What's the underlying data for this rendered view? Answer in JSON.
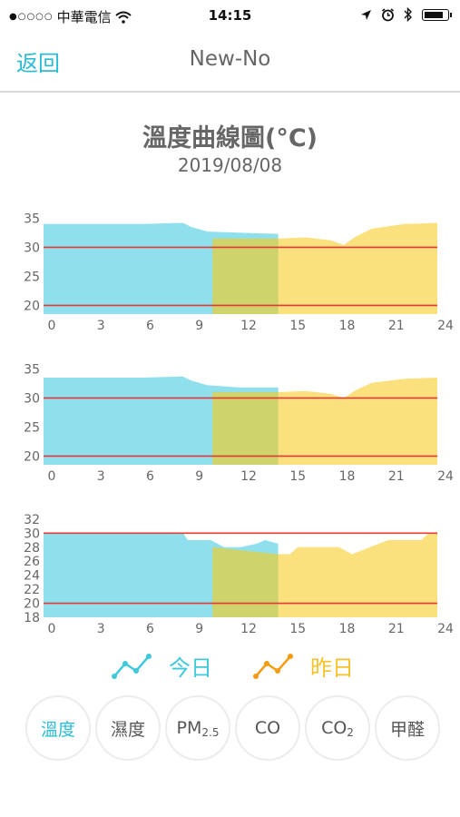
{
  "status_bar": {
    "carrier": "中華電信",
    "time": "14:15",
    "signal_icon": "signal-dots",
    "wifi_icon": "wifi-icon",
    "location_icon": "location-arrow-icon",
    "alarm_icon": "alarm-clock-icon",
    "bluetooth_icon": "bluetooth-icon",
    "battery_icon": "battery-icon"
  },
  "nav": {
    "back_label": "返回",
    "title": "New-No"
  },
  "page": {
    "title": "溫度曲線圖(°C)",
    "date": "2019/08/08"
  },
  "colors": {
    "today": "#8fe0ec",
    "yesterday": "#fbe07e",
    "overlap": "#cfd36b",
    "threshold": "#e53935",
    "accent": "#29bcd4",
    "yesterday_text": "#f6c22b"
  },
  "chart_data": [
    {
      "type": "area",
      "x_ticks": [
        0,
        3,
        6,
        9,
        12,
        15,
        18,
        21,
        24
      ],
      "y_ticks": [
        20,
        25,
        30,
        35
      ],
      "ylim": [
        18.5,
        36
      ],
      "thresholds": [
        20,
        30
      ],
      "series": [
        {
          "x": [
            0,
            6,
            8.5,
            9,
            10,
            12,
            14.3
          ],
          "y": [
            34,
            34,
            34.2,
            33.5,
            32.7,
            32.5,
            32.3
          ]
        },
        {
          "x": [
            10.3,
            14.3,
            16,
            17.5,
            18.3,
            19,
            20,
            22,
            24
          ],
          "y": [
            31.5,
            31.5,
            31.7,
            31.2,
            30.4,
            31.8,
            33.2,
            34,
            34.2
          ]
        }
      ]
    },
    {
      "type": "area",
      "x_ticks": [
        0,
        3,
        6,
        9,
        12,
        15,
        18,
        21,
        24
      ],
      "y_ticks": [
        20,
        25,
        30,
        35
      ],
      "ylim": [
        18.5,
        36
      ],
      "thresholds": [
        20,
        30
      ],
      "series": [
        {
          "x": [
            0,
            6,
            8.5,
            9,
            10,
            12,
            14.3
          ],
          "y": [
            33.5,
            33.5,
            33.7,
            33,
            32.2,
            31.8,
            31.8
          ]
        },
        {
          "x": [
            10.3,
            14.3,
            16,
            17.5,
            18.3,
            19,
            20,
            22,
            24
          ],
          "y": [
            31,
            31,
            31.2,
            30.7,
            30,
            31.3,
            32.6,
            33.3,
            33.5
          ]
        }
      ]
    },
    {
      "type": "area",
      "x_ticks": [
        0,
        3,
        6,
        9,
        12,
        15,
        18,
        21,
        24
      ],
      "y_ticks": [
        18,
        20,
        22,
        24,
        26,
        28,
        30,
        32
      ],
      "ylim": [
        18,
        32.5
      ],
      "thresholds": [
        20,
        30
      ],
      "series": [
        {
          "x": [
            0,
            8.5,
            8.8,
            10.2,
            11,
            12,
            13,
            13.5,
            14.3
          ],
          "y": [
            30,
            30,
            29,
            29,
            28,
            28,
            28.5,
            29,
            28.5
          ]
        },
        {
          "x": [
            10.3,
            14.3,
            15,
            15.5,
            18,
            18.8,
            21,
            23,
            23.5,
            24
          ],
          "y": [
            28,
            27,
            27,
            28,
            28,
            27,
            29,
            29,
            30,
            30
          ]
        }
      ]
    }
  ],
  "legend": {
    "today_label": "今日",
    "yesterday_label": "昨日"
  },
  "tabs": [
    {
      "label": "溫度",
      "active": true
    },
    {
      "label": "濕度",
      "active": false
    },
    {
      "label": "PM",
      "sub": "2.5",
      "active": false
    },
    {
      "label": "CO",
      "active": false
    },
    {
      "label": "CO",
      "sub": "2",
      "active": false
    },
    {
      "label": "甲醛",
      "active": false
    }
  ]
}
